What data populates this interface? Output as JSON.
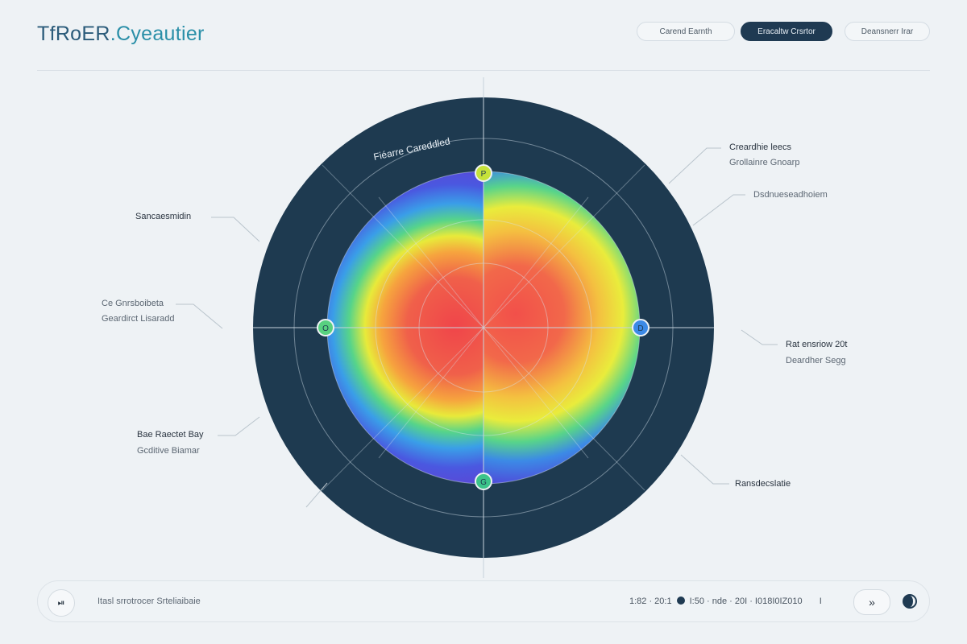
{
  "app": {
    "brand_main": "TfRoER",
    "brand_accent": ".Cyeautier"
  },
  "header": {
    "buttons": [
      {
        "label": "Carend Earnth"
      },
      {
        "label": "Eracaltw Crsrtor"
      },
      {
        "label": "Deansnerr Irar"
      }
    ]
  },
  "plot": {
    "arc_title": "Fiéarre Careddled",
    "markers": {
      "top": "P",
      "left": "O",
      "right": "D",
      "bottom": "G"
    }
  },
  "labels": {
    "top_right": {
      "title": "Creardhie leecs",
      "sub": "Grollainre Gnoarp"
    },
    "right_mid": {
      "title": "Dsdnueseadhoiem"
    },
    "right": {
      "title": "Rat ensriow 20t",
      "sub": "Deardher Segg"
    },
    "bottom_right": {
      "title": "Ransdecslatie"
    },
    "top_left": {
      "title": "Sancaesmidin"
    },
    "left": {
      "title": "Ce Gnrsboibeta",
      "sub": "Geardirct Lisaradd"
    },
    "bottom_left": {
      "title": "Bae Raectet Bay",
      "sub": "Gcditive  Biamar"
    }
  },
  "footer": {
    "play_icon": "⏯",
    "status": "Itasl srrotrocer Srteliaibaie",
    "readout_left": "1:82 · 20:1",
    "readout_right": "I:50 · nde · 20I · I018I0IZ010",
    "readout_end": "I",
    "next_icon": "»"
  },
  "colors": {
    "dark_ring": "#1e3a50",
    "accent": "#2a8fa8"
  }
}
